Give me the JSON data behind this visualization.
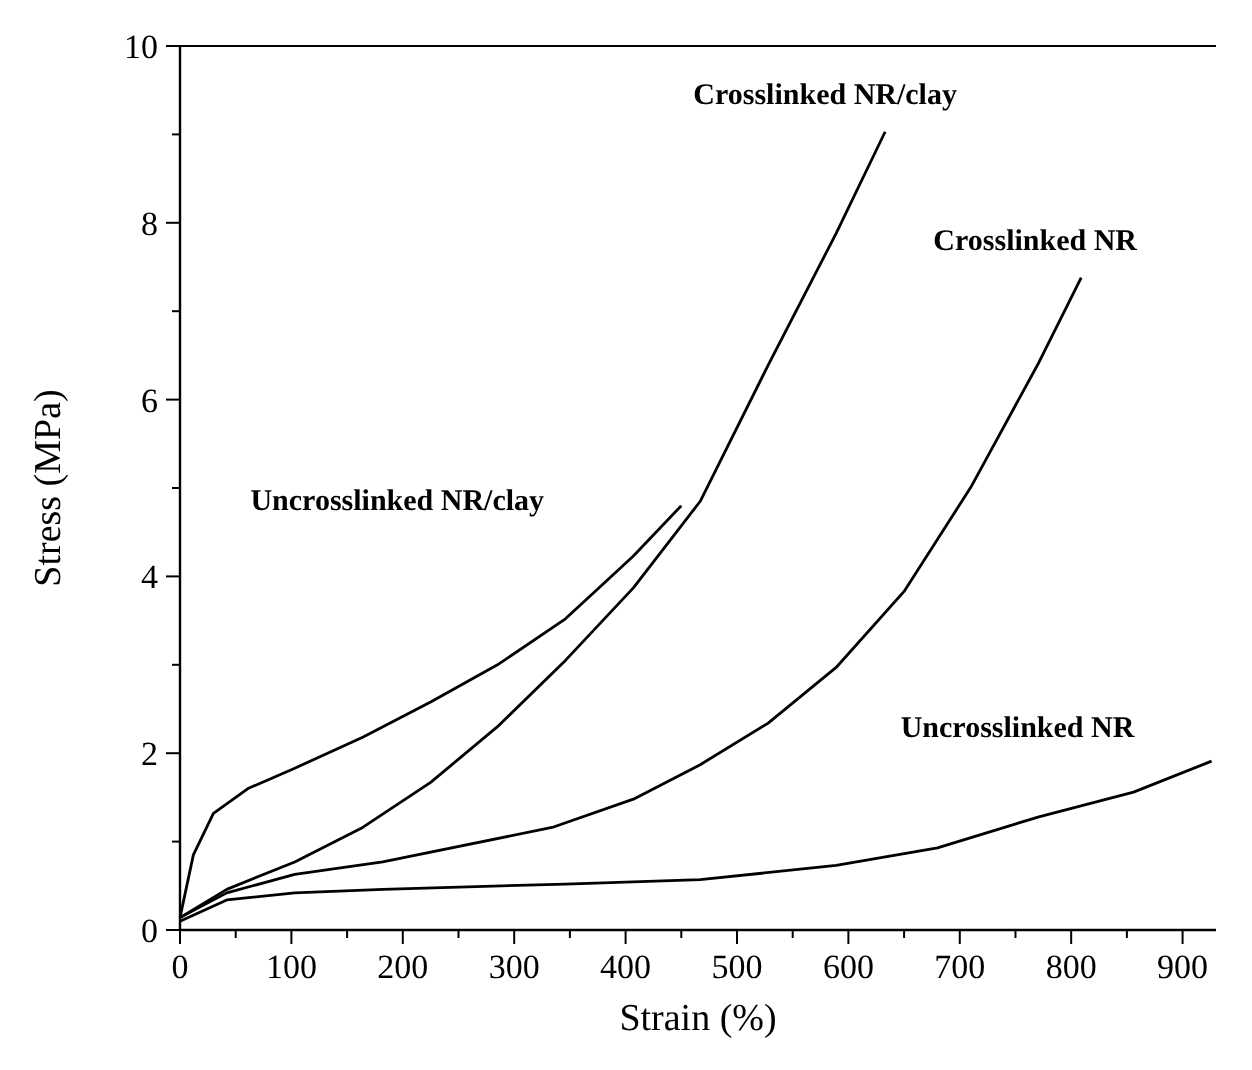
{
  "chart_data": {
    "type": "line",
    "xlabel": "Strain (%)",
    "ylabel": "Stress (MPa)",
    "xlim": [
      0,
      930
    ],
    "ylim": [
      0,
      10
    ],
    "xticks": [
      0,
      100,
      200,
      300,
      400,
      500,
      600,
      700,
      800,
      900
    ],
    "yticks": [
      0,
      2,
      4,
      6,
      8,
      10
    ],
    "grid": false,
    "marker": "none",
    "line_style": "solid",
    "series": [
      {
        "name": "Uncrosslinked NR/clay",
        "color": "#000000",
        "x": [
          0,
          12,
          30,
          61,
          103,
          164,
          225,
          285,
          346,
          383,
          407,
          450
        ],
        "values": [
          0.14,
          0.85,
          1.32,
          1.6,
          1.83,
          2.18,
          2.58,
          3.0,
          3.52,
          3.95,
          4.23,
          4.8
        ]
      },
      {
        "name": "Crosslinked NR/clay",
        "color": "#000000",
        "x": [
          0,
          42,
          103,
          164,
          225,
          285,
          346,
          407,
          467,
          528,
          589,
          633
        ],
        "values": [
          0.14,
          0.46,
          0.77,
          1.16,
          1.67,
          2.3,
          3.05,
          3.87,
          4.85,
          6.39,
          7.88,
          9.03
        ]
      },
      {
        "name": "Crosslinked NR",
        "color": "#000000",
        "x": [
          0,
          42,
          103,
          182,
          334,
          407,
          467,
          528,
          589,
          650,
          710,
          771,
          809
        ],
        "values": [
          0.14,
          0.42,
          0.63,
          0.77,
          1.16,
          1.48,
          1.87,
          2.34,
          2.97,
          3.83,
          5.01,
          6.42,
          7.38
        ]
      },
      {
        "name": "Uncrosslinked NR",
        "color": "#000000",
        "x": [
          0,
          42,
          103,
          182,
          346,
          467,
          589,
          680,
          771,
          856,
          926
        ],
        "values": [
          0.1,
          0.34,
          0.42,
          0.46,
          0.52,
          0.57,
          0.73,
          0.93,
          1.28,
          1.56,
          1.91
        ]
      }
    ]
  }
}
